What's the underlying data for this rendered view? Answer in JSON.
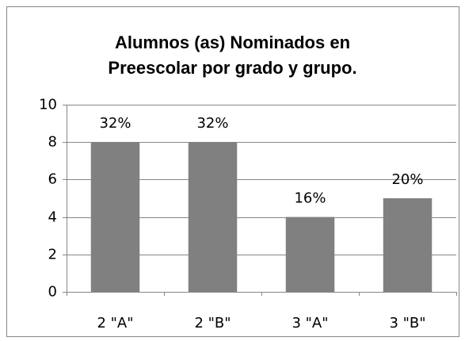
{
  "chart_data": {
    "type": "bar",
    "title": "Alumnos (as) Nominados en Preescolar por grado y grupo.",
    "categories": [
      "2 \"A\"",
      "2 \"B\"",
      "3 \"A\"",
      "3 \"B\""
    ],
    "values": [
      8,
      8,
      4,
      5
    ],
    "value_labels": [
      "32%",
      "32%",
      "16%",
      "20%"
    ],
    "color": "#808080",
    "ylim": [
      0,
      10
    ],
    "yticks": [
      0,
      2,
      4,
      6,
      8,
      10
    ],
    "grid": true
  }
}
